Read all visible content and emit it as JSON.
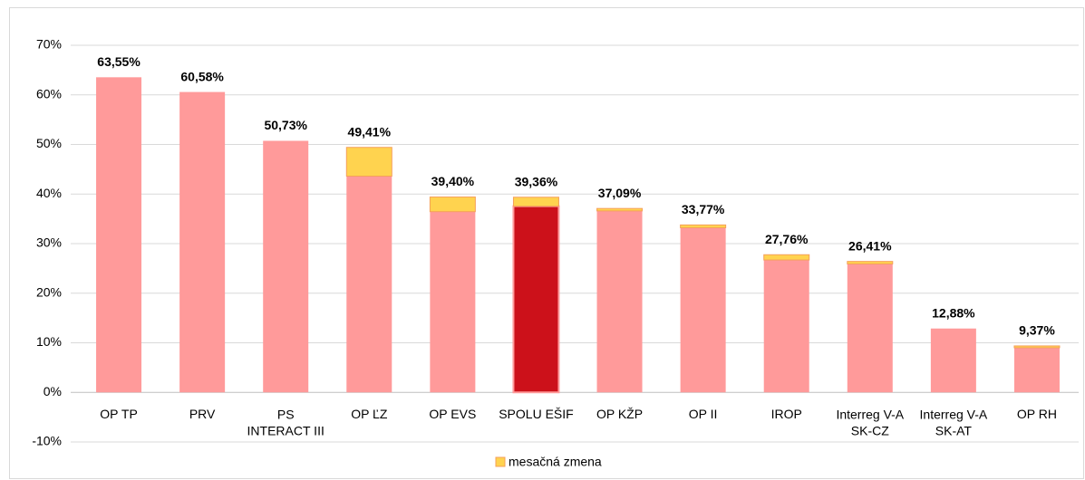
{
  "chart_data": {
    "type": "stacked_bar",
    "categories": [
      "OP TP",
      "PRV",
      "PS\nINTERACT III",
      "OP ĽZ",
      "OP EVS",
      "SPOLU EŠIF",
      "OP KŽP",
      "OP II",
      "IROP",
      "Interreg V-A\nSK-CZ",
      "Interreg V-A\nSK-AT",
      "OP RH"
    ],
    "series": [
      {
        "color": "#ff9a9a",
        "colors": [
          "#ff9a9a",
          "#ff9a9a",
          "#ff9a9a",
          "#ff9a9a",
          "#ff9a9a",
          "#cc111a",
          "#ff9a9a",
          "#ff9a9a",
          "#ff9a9a",
          "#ff9a9a",
          "#ff9a9a",
          "#ff9a9a"
        ],
        "values": [
          63.55,
          60.58,
          50.73,
          43.6,
          36.45,
          37.55,
          36.6,
          33.2,
          26.7,
          25.9,
          12.88,
          9.0
        ]
      },
      {
        "name": "mesačná zmena",
        "color": "#ffd34f",
        "values": [
          0,
          0,
          0,
          5.81,
          2.95,
          1.81,
          0.49,
          0.57,
          1.06,
          0.51,
          0,
          0.37
        ]
      }
    ],
    "total_labels": [
      "63,55%",
      "60,58%",
      "50,73%",
      "49,41%",
      "39,40%",
      "39,36%",
      "37,09%",
      "33,77%",
      "27,76%",
      "26,41%",
      "12,88%",
      "9,37%"
    ],
    "ylim": [
      -10,
      70
    ],
    "yticks": [
      {
        "value": -10,
        "label": "-10%"
      },
      {
        "value": 0,
        "label": "0%"
      },
      {
        "value": 10,
        "label": "10%"
      },
      {
        "value": 20,
        "label": "20%"
      },
      {
        "value": 30,
        "label": "30%"
      },
      {
        "value": 40,
        "label": "40%"
      },
      {
        "value": 50,
        "label": "50%"
      },
      {
        "value": 60,
        "label": "60%"
      },
      {
        "value": 70,
        "label": "70%"
      }
    ],
    "grid": true,
    "legend": "bottom"
  }
}
